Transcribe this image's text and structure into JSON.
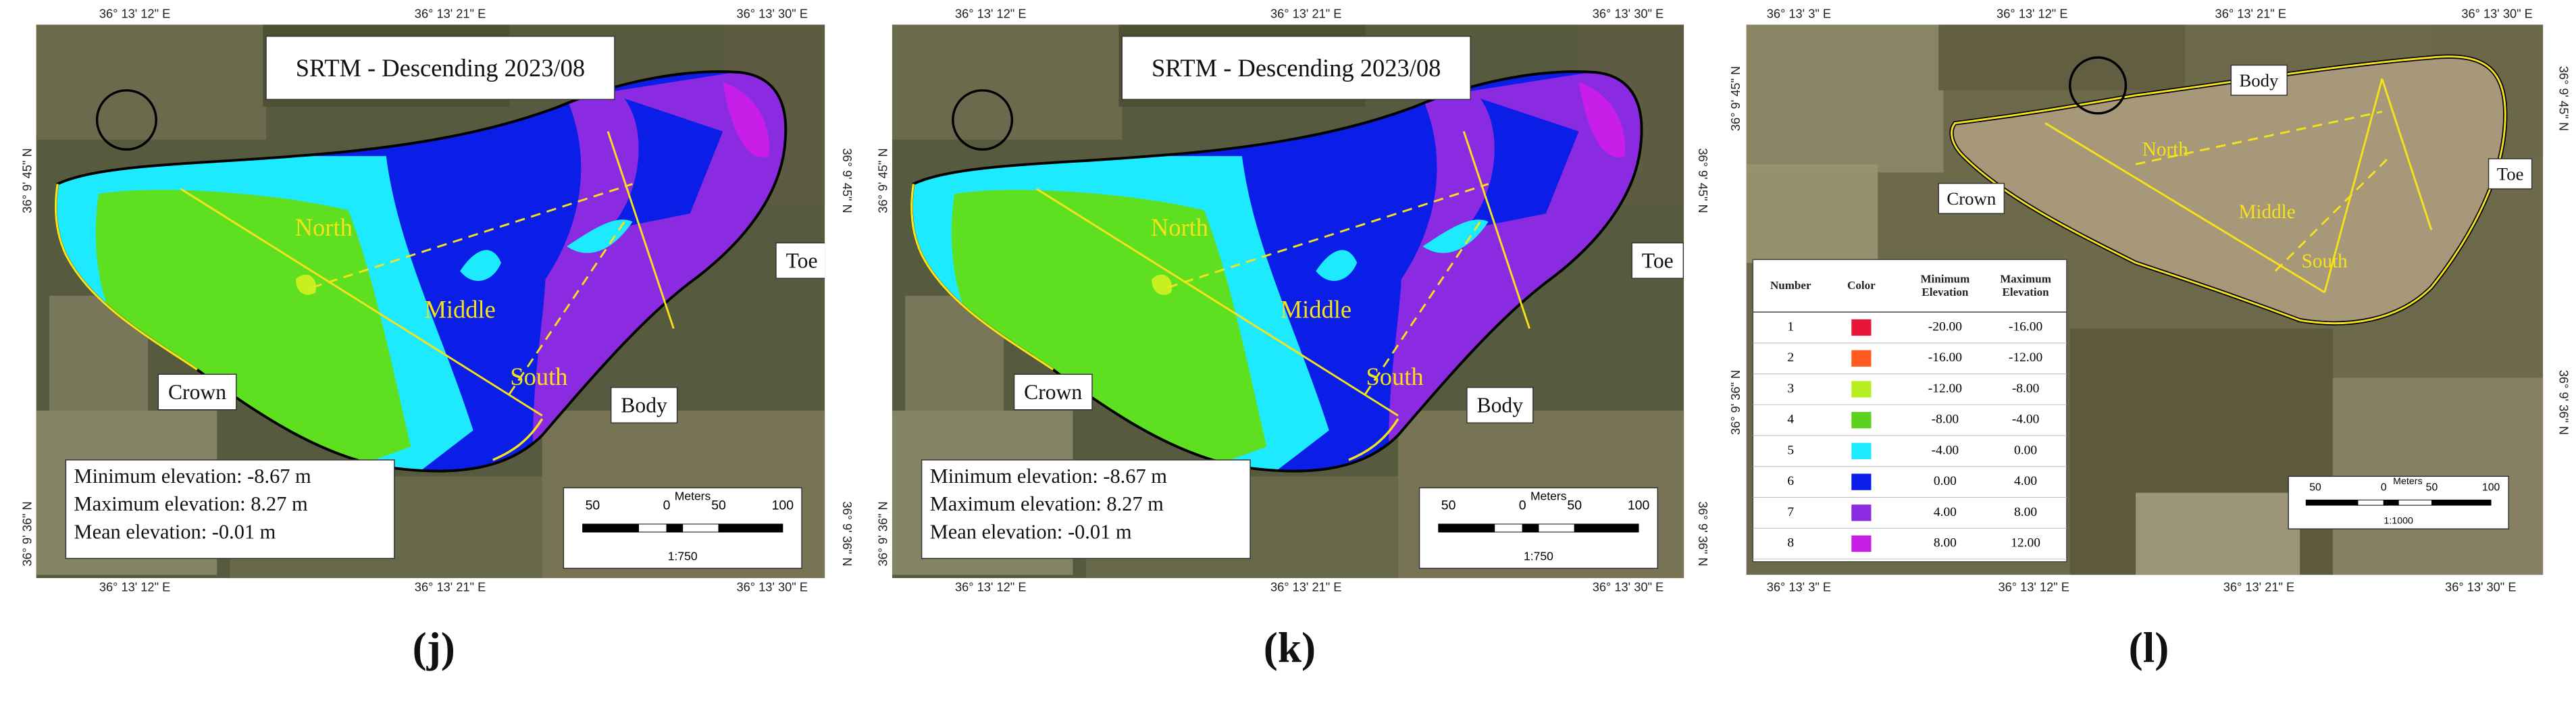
{
  "panels": [
    {
      "caption": "(j)",
      "title": "SRTM - Descending 2023/08",
      "top_coords": [
        "36° 13' 12\" E",
        "36° 13' 21\" E",
        "36° 13' 30\" E"
      ],
      "bottom_coords": [
        "36° 13' 12\" E",
        "36° 13' 21\" E",
        "36° 13' 30\" E"
      ],
      "left_coords": [
        "36° 9' 45\" N",
        "36° 9' 36\" N"
      ],
      "right_coords": [
        "36° 9' 45\" N",
        "36° 9' 36\" N"
      ],
      "labels": [
        "North",
        "Middle",
        "South",
        "Crown",
        "Body",
        "Toe"
      ],
      "stats": [
        "Minimum elevation:  -8.67 m",
        "Maximum elevation: 8.27 m",
        "Mean elevation: -0.01 m"
      ],
      "scale": {
        "unit": "Meters",
        "ticks": [
          "50",
          "0",
          "50",
          "100"
        ],
        "ratio": "1:750"
      }
    },
    {
      "caption": "(k)",
      "title": "SRTM - Descending 2023/08",
      "top_coords": [
        "36° 13' 12\" E",
        "36° 13' 21\" E",
        "36° 13' 30\" E"
      ],
      "bottom_coords": [
        "36° 13' 12\" E",
        "36° 13' 21\" E",
        "36° 13' 30\" E"
      ],
      "left_coords": [
        "36° 9' 45\" N",
        "36° 9' 36\" N"
      ],
      "right_coords": [
        "36° 9' 45\" N",
        "36° 9' 36\" N"
      ],
      "labels": [
        "North",
        "Middle",
        "South",
        "Crown",
        "Body",
        "Toe"
      ],
      "stats": [
        "Minimum elevation:  -8.67 m",
        "Maximum elevation: 8.27 m",
        "Mean elevation: -0.01 m"
      ],
      "scale": {
        "unit": "Meters",
        "ticks": [
          "50",
          "0",
          "50",
          "100"
        ],
        "ratio": "1:750"
      }
    },
    {
      "caption": "(l)",
      "top_coords": [
        "36° 13' 3\" E",
        "36° 13' 12\" E",
        "36° 13' 21\" E",
        "36° 13' 30\" E"
      ],
      "bottom_coords": [
        "36° 13' 3\" E",
        "36° 13' 12\" E",
        "36° 13' 21\" E",
        "36° 13' 30\" E"
      ],
      "left_coords": [
        "36° 9' 45\" N",
        "36° 9' 36\" N"
      ],
      "right_coords": [
        "36° 9' 45\" N",
        "36° 9' 36\" N"
      ],
      "labels": [
        "North",
        "Middle",
        "South",
        "Crown",
        "Body",
        "Toe"
      ],
      "scale": {
        "unit": "Meters",
        "ticks": [
          "50",
          "0",
          "50",
          "100"
        ],
        "ratio": "1:1000"
      }
    }
  ],
  "legend": {
    "headers": [
      "Number",
      "Color",
      "Minimum Elevation",
      "Maximum Elevation"
    ],
    "rows": [
      {
        "number": "1",
        "color": "#e8173a",
        "min": "-20.00",
        "max": "-16.00"
      },
      {
        "number": "2",
        "color": "#ff5a1f",
        "min": "-16.00",
        "max": "-12.00"
      },
      {
        "number": "3",
        "color": "#b5f01e",
        "min": "-12.00",
        "max": "-8.00"
      },
      {
        "number": "4",
        "color": "#5ad21e",
        "min": "-8.00",
        "max": "-4.00"
      },
      {
        "number": "5",
        "color": "#1eeaff",
        "min": "-4.00",
        "max": "0.00"
      },
      {
        "number": "6",
        "color": "#0a1ee8",
        "min": "0.00",
        "max": "4.00"
      },
      {
        "number": "7",
        "color": "#8a2be2",
        "min": "4.00",
        "max": "8.00"
      },
      {
        "number": "8",
        "color": "#c81ee8",
        "min": "8.00",
        "max": "12.00"
      }
    ]
  }
}
